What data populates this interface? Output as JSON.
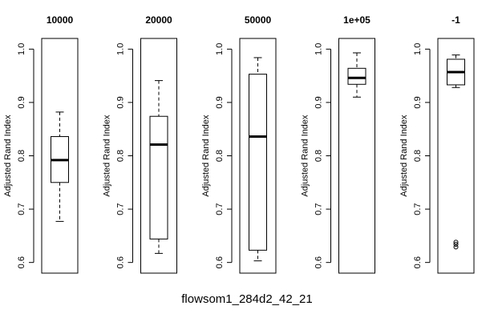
{
  "chart_data": {
    "type": "boxplot",
    "main_xlabel": "flowsom1_284d2_42_21",
    "ylabel": "Adjusted Rand Index",
    "ylim": [
      0.58,
      1.02
    ],
    "yticks": [
      0.6,
      0.7,
      0.8,
      0.9,
      1.0
    ],
    "ytick_labels": [
      "0.6",
      "0.7",
      "0.8",
      "0.9",
      "1.0"
    ],
    "panels": [
      {
        "title": "10000",
        "whisker_low": 0.677,
        "q1": 0.75,
        "median": 0.792,
        "q3": 0.836,
        "whisker_high": 0.882,
        "outliers": []
      },
      {
        "title": "20000",
        "whisker_low": 0.617,
        "q1": 0.644,
        "median": 0.821,
        "q3": 0.874,
        "whisker_high": 0.941,
        "outliers": []
      },
      {
        "title": "50000",
        "whisker_low": 0.603,
        "q1": 0.623,
        "median": 0.836,
        "q3": 0.953,
        "whisker_high": 0.984,
        "outliers": []
      },
      {
        "title": "1e+05",
        "whisker_low": 0.91,
        "q1": 0.934,
        "median": 0.946,
        "q3": 0.964,
        "whisker_high": 0.993,
        "outliers": []
      },
      {
        "title": "-1",
        "whisker_low": 0.928,
        "q1": 0.933,
        "median": 0.957,
        "q3": 0.981,
        "whisker_high": 0.989,
        "outliers": [
          0.629,
          0.634,
          0.638
        ]
      }
    ]
  }
}
